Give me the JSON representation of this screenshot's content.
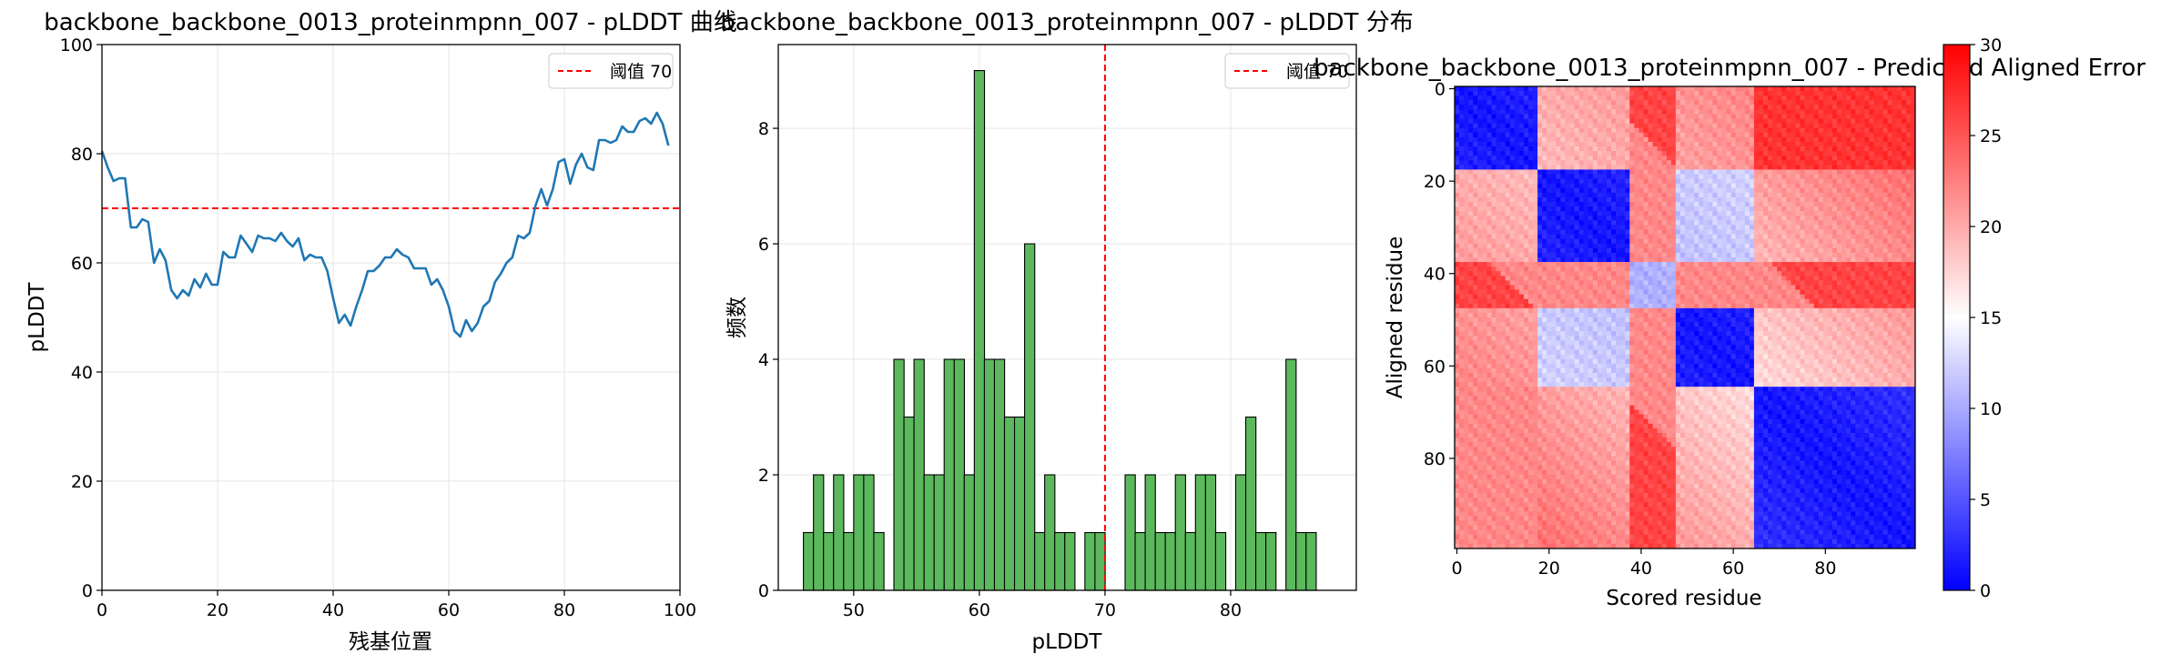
{
  "chart_data": [
    {
      "type": "line",
      "title": "backbone_backbone_0013_proteinmpnn_007 - pLDDT 曲线",
      "xlabel": "残基位置",
      "ylabel": "pLDDT",
      "xlim": [
        0,
        100
      ],
      "ylim": [
        0,
        100
      ],
      "xticks": [
        "0",
        "20",
        "40",
        "60",
        "80",
        "100"
      ],
      "yticks": [
        "0",
        "20",
        "40",
        "60",
        "80",
        "100"
      ],
      "grid": true,
      "legend": {
        "position": "top-right",
        "entries": [
          "阈值 70"
        ]
      },
      "threshold": 70,
      "series": [
        {
          "color": "#1f77b4",
          "x": [
            0,
            1,
            2,
            3,
            4,
            5,
            6,
            7,
            8,
            9,
            10,
            11,
            12,
            13,
            14,
            15,
            16,
            17,
            18,
            19,
            20,
            21,
            22,
            23,
            24,
            25,
            26,
            27,
            28,
            29,
            30,
            31,
            32,
            33,
            34,
            35,
            36,
            37,
            38,
            39,
            40,
            41,
            42,
            43,
            44,
            45,
            46,
            47,
            48,
            49,
            50,
            51,
            52,
            53,
            54,
            55,
            56,
            57,
            58,
            59,
            60,
            61,
            62,
            63,
            64,
            65,
            66,
            67,
            68,
            69,
            70,
            71,
            72,
            73,
            74,
            75,
            76,
            77,
            78,
            79,
            80,
            81,
            82,
            83,
            84,
            85,
            86,
            87,
            88,
            89,
            90,
            91,
            92,
            93,
            94,
            95,
            96,
            97,
            98,
            99,
            100
          ],
          "values": [
            80.5,
            77.5,
            75,
            75.5,
            75.5,
            66.5,
            66.5,
            68,
            67.5,
            60,
            62.5,
            60.5,
            55,
            53.5,
            55,
            54,
            57,
            55.5,
            58,
            56,
            56,
            62,
            61,
            61,
            65,
            63.5,
            62,
            65,
            64.5,
            64.5,
            64,
            65.5,
            64,
            63,
            64.5,
            60.5,
            61.5,
            61,
            61,
            58.5,
            53.5,
            49,
            50.5,
            48.5,
            52,
            55,
            58.5,
            58.5,
            59.5,
            61,
            61,
            62.5,
            61.5,
            61,
            59,
            59,
            59,
            56,
            57,
            55,
            52,
            47.5,
            46.5,
            49.5,
            47.5,
            49,
            52,
            53,
            56.5,
            58,
            60,
            61,
            65,
            64.5,
            65.5,
            70.5,
            73.5,
            70.5,
            73.5,
            78.5,
            79,
            74.5,
            78,
            80,
            77.5,
            77,
            82.5,
            82.5,
            82,
            82.5,
            85,
            84,
            84,
            86,
            86.5,
            85.5,
            87.5,
            85.5,
            81.5,
            null,
            null
          ]
        }
      ]
    },
    {
      "type": "bar",
      "title": "backbone_backbone_0013_proteinmpnn_007 - pLDDT 分布",
      "xlabel": "pLDDT",
      "ylabel": "频数",
      "xlim": [
        44,
        90
      ],
      "ylim": [
        0,
        9.45
      ],
      "xticks": [
        "50",
        "60",
        "70",
        "80"
      ],
      "yticks": [
        "0",
        "2",
        "4",
        "6",
        "8"
      ],
      "grid": true,
      "legend": {
        "position": "top-right",
        "entries": [
          "阈值 70"
        ]
      },
      "threshold": 70,
      "bin_width": 0.81,
      "bar_color": "#5cb85c",
      "bins": [
        46,
        46.8,
        47.6,
        48.4,
        49.2,
        50,
        50.8,
        51.6,
        52.4,
        53.2,
        54,
        54.8,
        55.6,
        56.4,
        57.2,
        58,
        58.8,
        59.6,
        60.4,
        61.2,
        62,
        62.8,
        63.6,
        64.4,
        65.2,
        66,
        66.8,
        67.6,
        68.4,
        69.2,
        70,
        70.8,
        71.6,
        72.4,
        73.2,
        74,
        74.8,
        75.6,
        76.4,
        77.2,
        78,
        78.8,
        79.6,
        80.4,
        81.2,
        82,
        82.8,
        83.6,
        84.4,
        85.2,
        86,
        86.8,
        87.6
      ],
      "values": [
        1,
        2,
        1,
        2,
        1,
        2,
        2,
        1,
        0,
        4,
        3,
        4,
        2,
        2,
        4,
        4,
        2,
        9,
        4,
        4,
        3,
        3,
        6,
        1,
        2,
        1,
        1,
        0,
        1,
        1,
        0,
        0,
        2,
        1,
        2,
        1,
        1,
        2,
        1,
        2,
        2,
        1,
        0,
        2,
        3,
        1,
        1,
        0,
        4,
        1,
        1,
        0,
        0
      ]
    },
    {
      "type": "heatmap",
      "title": "backbone_backbone_0013_proteinmpnn_007 - Predicted Aligned Error",
      "xlabel": "Scored residue",
      "ylabel": "Aligned residue",
      "size": 100,
      "xticks": [
        "0",
        "20",
        "40",
        "60",
        "80"
      ],
      "yticks": [
        "0",
        "20",
        "40",
        "60",
        "80"
      ],
      "colormap": "bwr",
      "colorbar": {
        "min": 0,
        "max": 30,
        "ticks": [
          "0",
          "5",
          "10",
          "15",
          "20",
          "25",
          "30"
        ]
      },
      "domains": [
        [
          0,
          18
        ],
        [
          18,
          38
        ],
        [
          38,
          48
        ],
        [
          48,
          65
        ],
        [
          65,
          100
        ]
      ]
    }
  ]
}
